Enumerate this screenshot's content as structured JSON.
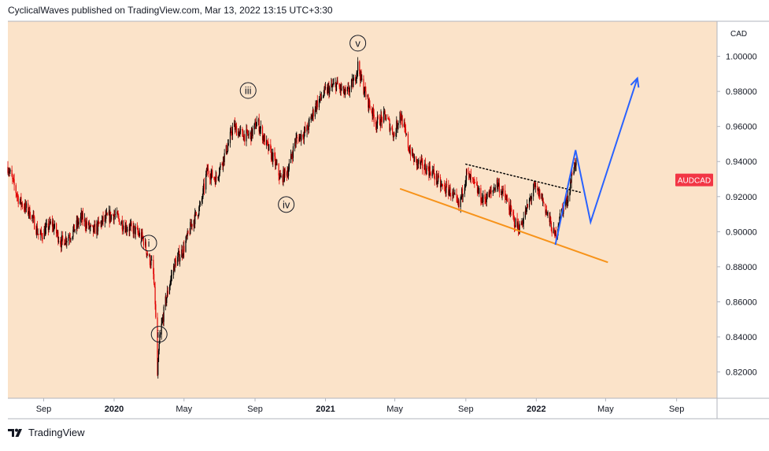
{
  "header": {
    "published_by": "CyclicalWaves published on TradingView.com, Mar 13, 2022 13:15 UTC+3:30"
  },
  "footer": {
    "brand": "TradingView"
  },
  "chart_data": {
    "type": "candlestick",
    "symbol": "AUDCAD",
    "currency_label": "CAD",
    "price_axis": {
      "ylim": [
        0.805,
        1.02
      ],
      "ticks": [
        "1.00000",
        "0.98000",
        "0.96000",
        "0.94000",
        "0.92000",
        "0.90000",
        "0.88000",
        "0.86000",
        "0.84000",
        "0.82000"
      ],
      "tick_values": [
        1.0,
        0.98,
        0.96,
        0.94,
        0.92,
        0.9,
        0.88,
        0.86,
        0.84,
        0.82
      ]
    },
    "time_axis": {
      "xlim": [
        "2019-07-01",
        "2022-11-10"
      ],
      "ticks": [
        "Sep",
        "2020",
        "May",
        "Sep",
        "2021",
        "May",
        "Sep",
        "2022",
        "May",
        "Sep"
      ],
      "tick_dates": [
        "2019-09-01",
        "2020-01-01",
        "2020-05-01",
        "2020-09-01",
        "2021-01-01",
        "2021-05-01",
        "2021-09-01",
        "2022-01-01",
        "2022-05-01",
        "2022-09-01"
      ],
      "bold_ticks": [
        "2020",
        "2021",
        "2022"
      ]
    },
    "price_path": [
      [
        "2019-07-01",
        0.937
      ],
      [
        "2019-07-20",
        0.918
      ],
      [
        "2019-08-10",
        0.91
      ],
      [
        "2019-08-25",
        0.897
      ],
      [
        "2019-09-15",
        0.905
      ],
      [
        "2019-10-01",
        0.894
      ],
      [
        "2019-10-20",
        0.899
      ],
      [
        "2019-11-05",
        0.908
      ],
      [
        "2019-11-25",
        0.9
      ],
      [
        "2019-12-15",
        0.907
      ],
      [
        "2020-01-01",
        0.91
      ],
      [
        "2020-01-20",
        0.903
      ],
      [
        "2020-02-05",
        0.901
      ],
      [
        "2020-02-20",
        0.896
      ],
      [
        "2020-03-01",
        0.885
      ],
      [
        "2020-03-08",
        0.88
      ],
      [
        "2020-03-12",
        0.86
      ],
      [
        "2020-03-16",
        0.818
      ],
      [
        "2020-03-20",
        0.84
      ],
      [
        "2020-03-30",
        0.86
      ],
      [
        "2020-04-08",
        0.873
      ],
      [
        "2020-04-15",
        0.882
      ],
      [
        "2020-04-30",
        0.89
      ],
      [
        "2020-05-15",
        0.905
      ],
      [
        "2020-05-30",
        0.915
      ],
      [
        "2020-06-10",
        0.935
      ],
      [
        "2020-06-25",
        0.93
      ],
      [
        "2020-07-15",
        0.948
      ],
      [
        "2020-07-25",
        0.96
      ],
      [
        "2020-08-10",
        0.955
      ],
      [
        "2020-08-25",
        0.955
      ],
      [
        "2020-09-05",
        0.963
      ],
      [
        "2020-09-20",
        0.95
      ],
      [
        "2020-10-05",
        0.94
      ],
      [
        "2020-10-15",
        0.93
      ],
      [
        "2020-10-28",
        0.935
      ],
      [
        "2020-11-10",
        0.952
      ],
      [
        "2020-11-30",
        0.958
      ],
      [
        "2020-12-15",
        0.972
      ],
      [
        "2021-01-01",
        0.98
      ],
      [
        "2021-01-20",
        0.984
      ],
      [
        "2021-02-05",
        0.978
      ],
      [
        "2021-02-20",
        0.986
      ],
      [
        "2021-02-26",
        0.995
      ],
      [
        "2021-03-05",
        0.985
      ],
      [
        "2021-03-15",
        0.975
      ],
      [
        "2021-03-30",
        0.962
      ],
      [
        "2021-04-15",
        0.966
      ],
      [
        "2021-04-30",
        0.955
      ],
      [
        "2021-05-10",
        0.968
      ],
      [
        "2021-05-25",
        0.948
      ],
      [
        "2021-06-05",
        0.94
      ],
      [
        "2021-06-20",
        0.937
      ],
      [
        "2021-07-05",
        0.934
      ],
      [
        "2021-07-20",
        0.926
      ],
      [
        "2021-08-05",
        0.923
      ],
      [
        "2021-08-20",
        0.914
      ],
      [
        "2021-09-02",
        0.933
      ],
      [
        "2021-09-15",
        0.927
      ],
      [
        "2021-09-30",
        0.918
      ],
      [
        "2021-10-15",
        0.922
      ],
      [
        "2021-10-25",
        0.928
      ],
      [
        "2021-11-10",
        0.918
      ],
      [
        "2021-11-25",
        0.905
      ],
      [
        "2021-12-03",
        0.902
      ],
      [
        "2021-12-15",
        0.912
      ],
      [
        "2021-12-28",
        0.925
      ],
      [
        "2022-01-10",
        0.92
      ],
      [
        "2022-01-25",
        0.905
      ],
      [
        "2022-02-02",
        0.897
      ],
      [
        "2022-02-12",
        0.91
      ],
      [
        "2022-02-25",
        0.92
      ],
      [
        "2022-03-05",
        0.935
      ],
      [
        "2022-03-10",
        0.94
      ],
      [
        "2022-03-13",
        0.933
      ]
    ],
    "wave_labels": [
      {
        "label": "i",
        "date": "2020-03-01",
        "price": 0.8935
      },
      {
        "label": "ii",
        "date": "2020-03-19",
        "price": 0.8415
      },
      {
        "label": "iii",
        "date": "2020-08-20",
        "price": 0.9805
      },
      {
        "label": "iv",
        "date": "2020-10-25",
        "price": 0.9155
      },
      {
        "label": "v",
        "date": "2021-02-26",
        "price": 1.0075
      }
    ],
    "annotations": {
      "support_line": {
        "color": "#f7931a",
        "from": [
          "2021-05-10",
          0.9245
        ],
        "to": [
          "2022-05-05",
          0.8825
        ]
      },
      "resistance_line": {
        "color": "#000000",
        "style": "dotted",
        "from": [
          "2021-09-01",
          0.9385
        ],
        "to": [
          "2022-03-18",
          0.9225
        ]
      },
      "forecast_path": {
        "color": "#2962ff",
        "points": [
          [
            "2022-02-03",
            0.8925
          ],
          [
            "2022-03-10",
            0.9465
          ],
          [
            "2022-04-05",
            0.9055
          ],
          [
            "2022-06-25",
            0.9875
          ]
        ]
      }
    },
    "last_price_label": {
      "text": "AUDCAD",
      "price": 0.9295,
      "color": "#f23645"
    },
    "background_color": "#fbe3c9",
    "up_color": "#000000",
    "down_color": "#e00000"
  }
}
